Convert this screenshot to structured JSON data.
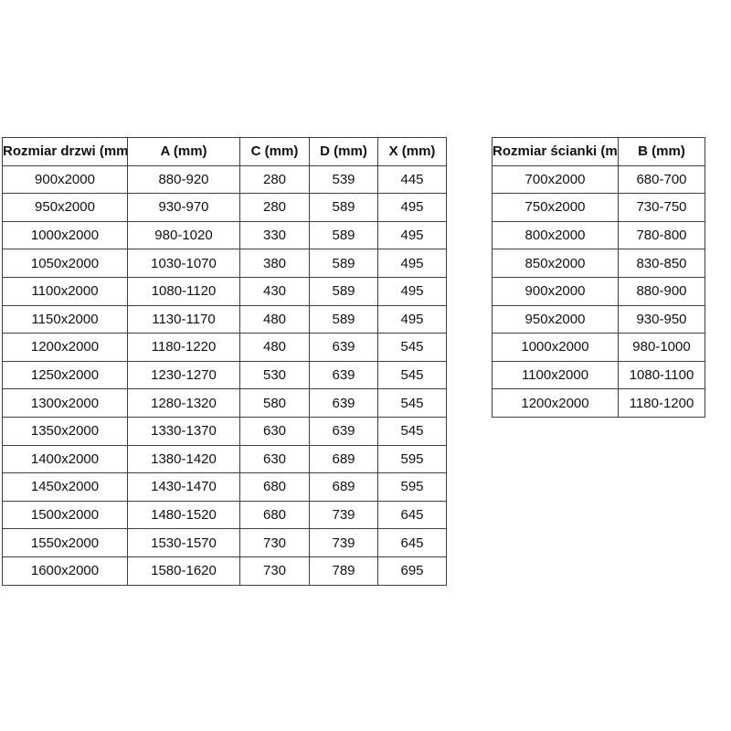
{
  "colors": {
    "background": "#ffffff",
    "border": "#3f3f3f",
    "text": "#111111"
  },
  "tables": [
    {
      "id": "door-table",
      "name": "door-sizes-table",
      "headers": [
        "Rozmiar drzwi (mm)",
        "A (mm)",
        "C (mm)",
        "D (mm)",
        "X (mm)"
      ],
      "rows": [
        [
          "900x2000",
          "880-920",
          "280",
          "539",
          "445"
        ],
        [
          "950x2000",
          "930-970",
          "280",
          "589",
          "495"
        ],
        [
          "1000x2000",
          "980-1020",
          "330",
          "589",
          "495"
        ],
        [
          "1050x2000",
          "1030-1070",
          "380",
          "589",
          "495"
        ],
        [
          "1100x2000",
          "1080-1120",
          "430",
          "589",
          "495"
        ],
        [
          "1150x2000",
          "1130-1170",
          "480",
          "589",
          "495"
        ],
        [
          "1200x2000",
          "1180-1220",
          "480",
          "639",
          "545"
        ],
        [
          "1250x2000",
          "1230-1270",
          "530",
          "639",
          "545"
        ],
        [
          "1300x2000",
          "1280-1320",
          "580",
          "639",
          "545"
        ],
        [
          "1350x2000",
          "1330-1370",
          "630",
          "639",
          "545"
        ],
        [
          "1400x2000",
          "1380-1420",
          "630",
          "689",
          "595"
        ],
        [
          "1450x2000",
          "1430-1470",
          "680",
          "689",
          "595"
        ],
        [
          "1500x2000",
          "1480-1520",
          "680",
          "739",
          "645"
        ],
        [
          "1550x2000",
          "1530-1570",
          "730",
          "739",
          "645"
        ],
        [
          "1600x2000",
          "1580-1620",
          "730",
          "789",
          "695"
        ]
      ]
    },
    {
      "id": "wall-table",
      "name": "wall-panel-sizes-table",
      "headers": [
        "Rozmiar ścianki (mm)",
        "B (mm)"
      ],
      "rows": [
        [
          "700x2000",
          "680-700"
        ],
        [
          "750x2000",
          "730-750"
        ],
        [
          "800x2000",
          "780-800"
        ],
        [
          "850x2000",
          "830-850"
        ],
        [
          "900x2000",
          "880-900"
        ],
        [
          "950x2000",
          "930-950"
        ],
        [
          "1000x2000",
          "980-1000"
        ],
        [
          "1100x2000",
          "1080-1100"
        ],
        [
          "1200x2000",
          "1180-1200"
        ]
      ]
    }
  ]
}
